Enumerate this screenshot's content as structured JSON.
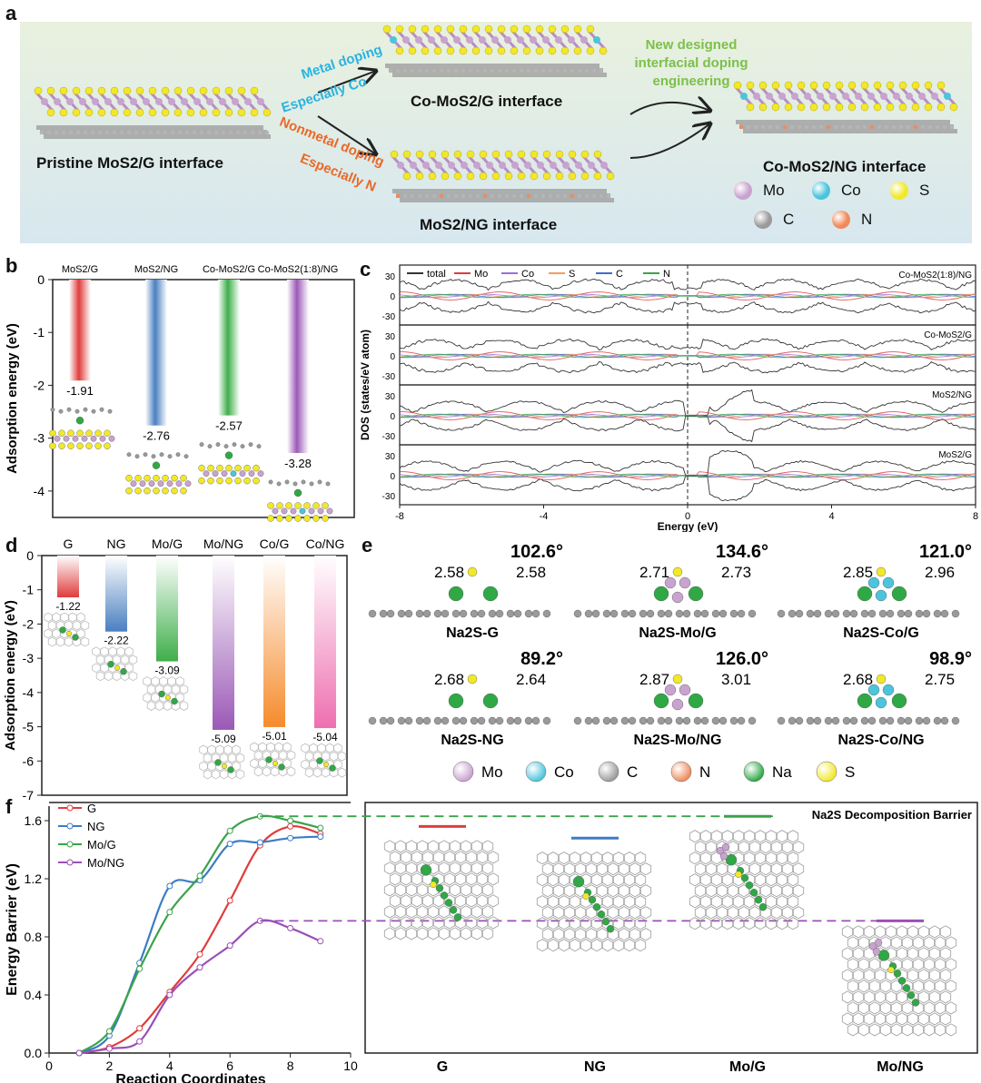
{
  "labels": {
    "a": "a",
    "b": "b",
    "c": "c",
    "d": "d",
    "e": "e",
    "f": "f"
  },
  "panel_a": {
    "pristine": "Pristine MoS2/G interface",
    "co": "Co-MoS2/G interface",
    "ng": "MoS2/NG interface",
    "final": "Co-MoS2/NG interface",
    "metal1": "Metal doping",
    "metal2": "Especially Co",
    "nonmetal1": "Nonmetal doping",
    "nonmetal2": "Especially N",
    "new1": "New designed",
    "new2": "interfacial doping",
    "new3": "engineering",
    "legend": [
      {
        "label": "Mo",
        "color": "#c9a3cf"
      },
      {
        "label": "Co",
        "color": "#4cc4dc"
      },
      {
        "label": "S",
        "color": "#f2e82a"
      },
      {
        "label": "C",
        "color": "#9a9a9a"
      },
      {
        "label": "N",
        "color": "#f08a5a"
      }
    ]
  },
  "chart_data": [
    {
      "id": "b",
      "type": "bar",
      "categories": [
        "MoS2/G",
        "MoS2/NG",
        "Co-MoS2/G",
        "Co-MoS2(1:8)/NG"
      ],
      "values": [
        -1.91,
        -2.76,
        -2.57,
        -3.28
      ],
      "value_labels": [
        "-1.91",
        "-2.76",
        "-2.57",
        "-3.28"
      ],
      "colors": [
        "#e03c3c",
        "#4a7fc0",
        "#3fae4a",
        "#9b59b6"
      ],
      "ylabel": "Adsorption energy (eV)",
      "ylim": [
        -4.5,
        0
      ],
      "yticks": [
        0,
        -1,
        -2,
        -3,
        -4
      ]
    },
    {
      "id": "c",
      "type": "line",
      "xlabel": "Energy (eV)",
      "ylabel": "DOS (states/eV atom)",
      "xlim": [
        -8,
        8
      ],
      "xticks": [
        -8,
        -4,
        0,
        4,
        8
      ],
      "yticks": [
        30,
        0,
        -30
      ],
      "legend": [
        "total",
        "Mo",
        "Co",
        "S",
        "C",
        "N"
      ],
      "series_colors": [
        "#333333",
        "#e03c3c",
        "#9b6fd6",
        "#f59d5e",
        "#3b6fc9",
        "#3aa34a"
      ],
      "panels": [
        "Co-MoS2(1:8)/NG",
        "Co-MoS2/G",
        "MoS2/NG",
        "MoS2/G"
      ]
    },
    {
      "id": "d",
      "type": "bar",
      "categories": [
        "G",
        "NG",
        "Mo/G",
        "Mo/NG",
        "Co/G",
        "Co/NG"
      ],
      "values": [
        -1.22,
        -2.22,
        -3.09,
        -5.09,
        -5.01,
        -5.04
      ],
      "value_labels": [
        "-1.22",
        "-2.22",
        "-3.09",
        "-5.09",
        "-5.01",
        "-5.04"
      ],
      "colors": [
        "#e03c3c",
        "#4a7fc0",
        "#3fae4a",
        "#9b59b6",
        "#f58b2c",
        "#ee6fb0"
      ],
      "ylabel": "Adsorption energy (eV)",
      "ylim": [
        -7,
        0
      ],
      "yticks": [
        0,
        -1,
        -2,
        -3,
        -4,
        -5,
        -6,
        -7
      ]
    },
    {
      "id": "f",
      "type": "line",
      "xlabel": "Reaction Coordinates",
      "ylabel": "Energy Barrier (eV)",
      "xlim": [
        0,
        10
      ],
      "ylim": [
        0,
        1.7
      ],
      "xticks": [
        0,
        2,
        4,
        6,
        8,
        10
      ],
      "yticks": [
        0.0,
        0.4,
        0.8,
        1.2,
        1.6
      ],
      "series": [
        {
          "name": "G",
          "color": "#e03c3c",
          "x": [
            1,
            2,
            3,
            4,
            5,
            6,
            7,
            8,
            9
          ],
          "y": [
            0,
            0.04,
            0.17,
            0.42,
            0.68,
            1.05,
            1.43,
            1.56,
            1.51
          ]
        },
        {
          "name": "NG",
          "color": "#3b7cc4",
          "x": [
            1,
            2,
            3,
            4,
            5,
            6,
            7,
            8,
            9
          ],
          "y": [
            0,
            0.12,
            0.62,
            1.15,
            1.19,
            1.44,
            1.45,
            1.48,
            1.49
          ]
        },
        {
          "name": "Mo/G",
          "color": "#3aa34a",
          "x": [
            1,
            2,
            3,
            4,
            5,
            6,
            7,
            8,
            9
          ],
          "y": [
            0,
            0.15,
            0.58,
            0.97,
            1.22,
            1.53,
            1.63,
            1.6,
            1.55
          ]
        },
        {
          "name": "Mo/NG",
          "color": "#9b4fb6",
          "x": [
            1,
            2,
            3,
            4,
            5,
            6,
            7,
            8,
            9
          ],
          "y": [
            0,
            0.03,
            0.08,
            0.4,
            0.59,
            0.74,
            0.91,
            0.86,
            0.77
          ]
        }
      ],
      "barrier_title": "Na2S Decomposition Barrier",
      "barrier_categories": [
        "G",
        "NG",
        "Mo/G",
        "Mo/NG"
      ],
      "barrier_values": [
        1.56,
        1.48,
        1.63,
        0.91
      ]
    }
  ],
  "panel_e": {
    "structures": [
      {
        "name": "Na2S-G",
        "angle": "102.6°",
        "b1": "2.58",
        "b2": "2.58"
      },
      {
        "name": "Na2S-Mo/G",
        "angle": "134.6°",
        "b1": "2.71",
        "b2": "2.73"
      },
      {
        "name": "Na2S-Co/G",
        "angle": "121.0°",
        "b1": "2.85",
        "b2": "2.96"
      },
      {
        "name": "Na2S-NG",
        "angle": "89.2°",
        "b1": "2.68",
        "b2": "2.64"
      },
      {
        "name": "Na2S-Mo/NG",
        "angle": "126.0°",
        "b1": "2.87",
        "b2": "3.01"
      },
      {
        "name": "Na2S-Co/NG",
        "angle": "98.9°",
        "b1": "2.68",
        "b2": "2.75"
      }
    ],
    "legend": [
      {
        "label": "Mo",
        "color": "#c9a3cf"
      },
      {
        "label": "Co",
        "color": "#4cc4dc"
      },
      {
        "label": "C",
        "color": "#9a9a9a"
      },
      {
        "label": "N",
        "color": "#f08a5a"
      },
      {
        "label": "Na",
        "color": "#2fa845"
      },
      {
        "label": "S",
        "color": "#f2e82a"
      }
    ]
  }
}
